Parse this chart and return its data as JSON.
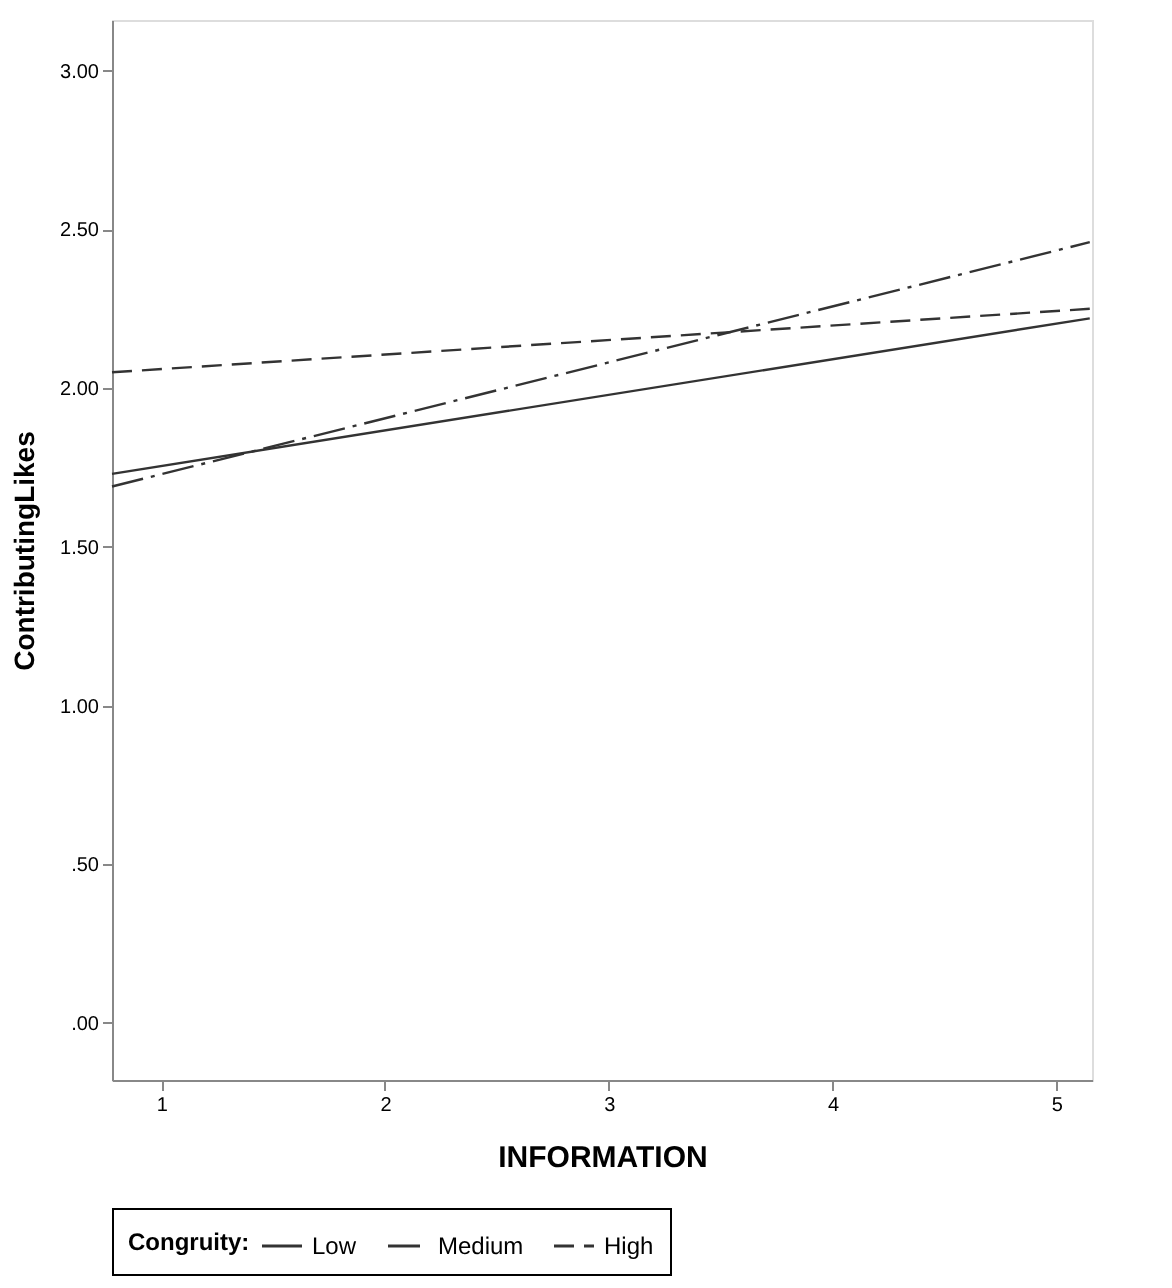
{
  "chart_data": {
    "type": "line",
    "xlabel": "INFORMATION",
    "ylabel": "ContributingLikes",
    "legend_title": "Congruity:",
    "x": [
      0.78,
      5.15
    ],
    "series": [
      {
        "name": "Low",
        "color": "#333333",
        "line_style": "solid",
        "values": [
          1.73,
          2.22
        ]
      },
      {
        "name": "Medium",
        "color": "#333333",
        "line_style": "dashdot",
        "values": [
          1.69,
          2.46
        ]
      },
      {
        "name": "High",
        "color": "#333333",
        "line_style": "dashed",
        "values": [
          2.05,
          2.25
        ]
      }
    ],
    "xlim": [
      0.78,
      5.16
    ],
    "xticks": [
      1,
      2,
      3,
      4,
      5
    ],
    "ylim": [
      -0.18,
      3.16
    ],
    "yticks": [
      {
        "value": 0,
        "label": ".00"
      },
      {
        "value": 0.5,
        "label": ".50"
      },
      {
        "value": 1,
        "label": "1.00"
      },
      {
        "value": 1.5,
        "label": "1.50"
      },
      {
        "value": 2,
        "label": "2.00"
      },
      {
        "value": 2.5,
        "label": "2.50"
      },
      {
        "value": 3,
        "label": "3.00"
      }
    ],
    "grid": false,
    "legend": "bottom",
    "marker": "none"
  }
}
